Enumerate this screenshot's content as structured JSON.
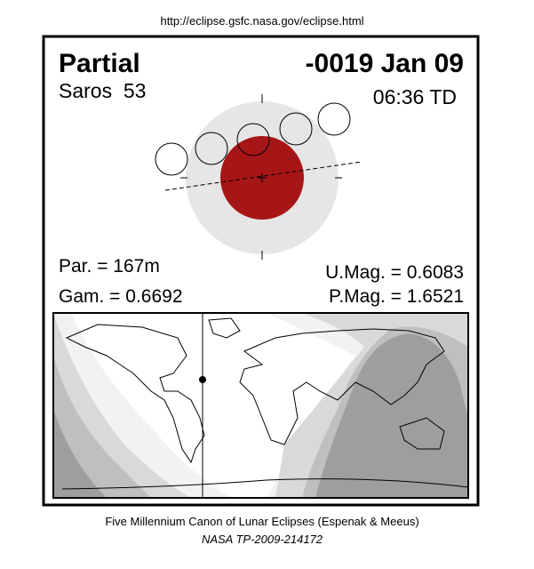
{
  "header": {
    "url": "http://eclipse.gsfc.nasa.gov/eclipse.html"
  },
  "eclipse": {
    "type": "Partial",
    "date": "-0019 Jan 09",
    "saros": "Saros  53",
    "time": "06:36 TD",
    "par": "Par. = 167m",
    "gam": "Gam. = 0.6692",
    "umag": "U.Mag. = 0.6083",
    "pmag": "P.Mag. = 1.6521"
  },
  "footer": {
    "line1": "Five Millennium Canon of Lunar Eclipses (Espenak & Meeus)",
    "line2": "NASA TP-2009-214172"
  }
}
